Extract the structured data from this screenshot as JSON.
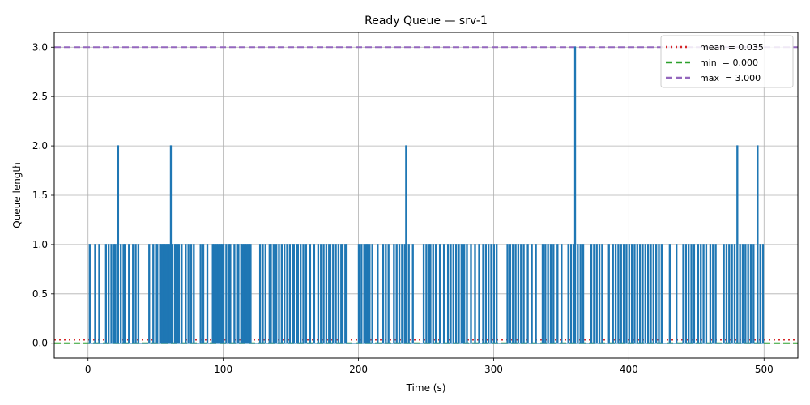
{
  "chart_data": {
    "type": "line",
    "title": "Ready Queue — srv-1",
    "xlabel": "Time (s)",
    "ylabel": "Queue length",
    "xlim": [
      -25,
      525
    ],
    "ylim": [
      -0.15,
      3.15
    ],
    "x_ticks": [
      0,
      100,
      200,
      300,
      400,
      500
    ],
    "x_tick_labels": [
      "0",
      "100",
      "200",
      "300",
      "400",
      "500"
    ],
    "y_ticks": [
      0,
      0.5,
      1,
      1.5,
      2,
      2.5,
      3
    ],
    "y_tick_labels": [
      "0.0",
      "0.5",
      "1.0",
      "1.5",
      "2.0",
      "2.5",
      "3.0"
    ],
    "grid": true,
    "legend_position": "top-right",
    "series": [
      {
        "color": "#1f77b4",
        "style": "step",
        "pulses": [
          [
            1,
            1
          ],
          [
            5,
            1
          ],
          [
            8,
            1
          ],
          [
            13,
            1
          ],
          [
            15,
            1
          ],
          [
            17,
            1
          ],
          [
            19,
            1
          ],
          [
            20,
            1
          ],
          [
            22,
            2
          ],
          [
            24,
            1
          ],
          [
            26,
            1
          ],
          [
            27,
            1
          ],
          [
            30,
            1
          ],
          [
            33,
            1
          ],
          [
            35,
            1
          ],
          [
            37,
            1
          ],
          [
            45,
            1
          ],
          [
            48,
            1
          ],
          [
            50,
            1
          ],
          [
            51,
            1
          ],
          [
            53,
            1
          ],
          [
            54,
            1
          ],
          [
            55,
            1
          ],
          [
            56,
            1
          ],
          [
            57,
            1
          ],
          [
            58,
            1
          ],
          [
            59,
            1
          ],
          [
            60,
            1
          ],
          [
            61,
            2
          ],
          [
            62,
            1
          ],
          [
            64,
            1
          ],
          [
            65,
            1
          ],
          [
            66,
            1
          ],
          [
            67,
            1
          ],
          [
            69,
            1
          ],
          [
            72,
            1
          ],
          [
            74,
            1
          ],
          [
            76,
            1
          ],
          [
            78,
            1
          ],
          [
            83,
            1
          ],
          [
            85,
            1
          ],
          [
            88,
            1
          ],
          [
            92,
            1
          ],
          [
            93,
            1
          ],
          [
            94,
            1
          ],
          [
            95,
            1
          ],
          [
            96,
            1
          ],
          [
            97,
            1
          ],
          [
            98,
            1
          ],
          [
            99,
            1
          ],
          [
            100,
            1
          ],
          [
            102,
            1
          ],
          [
            104,
            1
          ],
          [
            105,
            1
          ],
          [
            108,
            1
          ],
          [
            110,
            1
          ],
          [
            111,
            1
          ],
          [
            113,
            1
          ],
          [
            114,
            1
          ],
          [
            115,
            1
          ],
          [
            116,
            1
          ],
          [
            117,
            1
          ],
          [
            118,
            1
          ],
          [
            119,
            1
          ],
          [
            120,
            1
          ],
          [
            127,
            1
          ],
          [
            129,
            1
          ],
          [
            131,
            1
          ],
          [
            134,
            1
          ],
          [
            135,
            1
          ],
          [
            137,
            1
          ],
          [
            139,
            1
          ],
          [
            141,
            1
          ],
          [
            143,
            1
          ],
          [
            145,
            1
          ],
          [
            147,
            1
          ],
          [
            149,
            1
          ],
          [
            151,
            1
          ],
          [
            152,
            1
          ],
          [
            154,
            1
          ],
          [
            155,
            1
          ],
          [
            157,
            1
          ],
          [
            159,
            1
          ],
          [
            161,
            1
          ],
          [
            164,
            1
          ],
          [
            167,
            1
          ],
          [
            170,
            1
          ],
          [
            172,
            1
          ],
          [
            174,
            1
          ],
          [
            176,
            1
          ],
          [
            178,
            1
          ],
          [
            179,
            1
          ],
          [
            181,
            1
          ],
          [
            183,
            1
          ],
          [
            185,
            1
          ],
          [
            187,
            1
          ],
          [
            188,
            1
          ],
          [
            190,
            1
          ],
          [
            191,
            1
          ],
          [
            200,
            1
          ],
          [
            202,
            1
          ],
          [
            204,
            1
          ],
          [
            205,
            1
          ],
          [
            206,
            1
          ],
          [
            207,
            1
          ],
          [
            208,
            1
          ],
          [
            210,
            1
          ],
          [
            214,
            1
          ],
          [
            218,
            1
          ],
          [
            220,
            1
          ],
          [
            222,
            1
          ],
          [
            226,
            1
          ],
          [
            228,
            1
          ],
          [
            230,
            1
          ],
          [
            232,
            1
          ],
          [
            234,
            1
          ],
          [
            235,
            2
          ],
          [
            237,
            1
          ],
          [
            240,
            1
          ],
          [
            248,
            1
          ],
          [
            250,
            1
          ],
          [
            252,
            1
          ],
          [
            253,
            1
          ],
          [
            255,
            1
          ],
          [
            257,
            1
          ],
          [
            260,
            1
          ],
          [
            263,
            1
          ],
          [
            266,
            1
          ],
          [
            268,
            1
          ],
          [
            270,
            1
          ],
          [
            272,
            1
          ],
          [
            274,
            1
          ],
          [
            276,
            1
          ],
          [
            278,
            1
          ],
          [
            280,
            1
          ],
          [
            283,
            1
          ],
          [
            286,
            1
          ],
          [
            289,
            1
          ],
          [
            292,
            1
          ],
          [
            294,
            1
          ],
          [
            296,
            1
          ],
          [
            298,
            1
          ],
          [
            300,
            1
          ],
          [
            302,
            1
          ],
          [
            310,
            1
          ],
          [
            312,
            1
          ],
          [
            314,
            1
          ],
          [
            316,
            1
          ],
          [
            318,
            1
          ],
          [
            320,
            1
          ],
          [
            322,
            1
          ],
          [
            325,
            1
          ],
          [
            328,
            1
          ],
          [
            331,
            1
          ],
          [
            336,
            1
          ],
          [
            338,
            1
          ],
          [
            340,
            1
          ],
          [
            342,
            1
          ],
          [
            344,
            1
          ],
          [
            347,
            1
          ],
          [
            350,
            1
          ],
          [
            355,
            1
          ],
          [
            357,
            1
          ],
          [
            359,
            1
          ],
          [
            360,
            3
          ],
          [
            362,
            1
          ],
          [
            364,
            1
          ],
          [
            366,
            1
          ],
          [
            372,
            1
          ],
          [
            374,
            1
          ],
          [
            376,
            1
          ],
          [
            378,
            1
          ],
          [
            380,
            1
          ],
          [
            385,
            1
          ],
          [
            388,
            1
          ],
          [
            390,
            1
          ],
          [
            392,
            1
          ],
          [
            394,
            1
          ],
          [
            396,
            1
          ],
          [
            398,
            1
          ],
          [
            400,
            1
          ],
          [
            402,
            1
          ],
          [
            404,
            1
          ],
          [
            406,
            1
          ],
          [
            408,
            1
          ],
          [
            410,
            1
          ],
          [
            412,
            1
          ],
          [
            414,
            1
          ],
          [
            416,
            1
          ],
          [
            418,
            1
          ],
          [
            420,
            1
          ],
          [
            422,
            1
          ],
          [
            424,
            1
          ],
          [
            430,
            1
          ],
          [
            435,
            1
          ],
          [
            440,
            1
          ],
          [
            442,
            1
          ],
          [
            444,
            1
          ],
          [
            446,
            1
          ],
          [
            448,
            1
          ],
          [
            451,
            1
          ],
          [
            453,
            1
          ],
          [
            455,
            1
          ],
          [
            457,
            1
          ],
          [
            460,
            1
          ],
          [
            462,
            1
          ],
          [
            464,
            1
          ],
          [
            470,
            1
          ],
          [
            472,
            1
          ],
          [
            474,
            1
          ],
          [
            476,
            1
          ],
          [
            478,
            1
          ],
          [
            480,
            2
          ],
          [
            482,
            1
          ],
          [
            484,
            1
          ],
          [
            486,
            1
          ],
          [
            488,
            1
          ],
          [
            490,
            1
          ],
          [
            492,
            1
          ],
          [
            495,
            2
          ],
          [
            497,
            1
          ],
          [
            499,
            1
          ]
        ]
      }
    ],
    "reference_lines": [
      {
        "label": "mean = 0.035",
        "y": 0.035,
        "color": "#d62728",
        "dash": "dotted"
      },
      {
        "label": "min  = 0.000",
        "y": 0.0,
        "color": "#2ca02c",
        "dash": "dashed"
      },
      {
        "label": "max  = 3.000",
        "y": 3.0,
        "color": "#9467bd",
        "dash": "dashed"
      }
    ]
  }
}
